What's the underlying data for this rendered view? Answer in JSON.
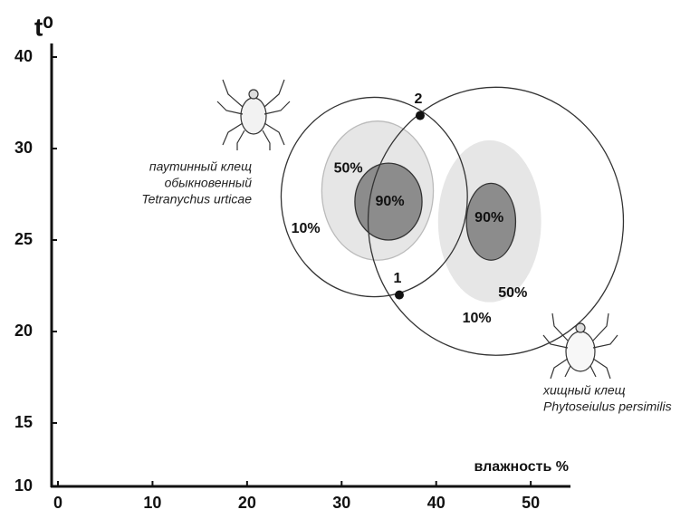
{
  "chart_data": {
    "type": "niche",
    "y_label": "t⁰",
    "x_label": "влажность %",
    "xlim": [
      0,
      54.2
    ],
    "xticks": [
      0,
      10,
      20,
      30,
      40,
      50
    ],
    "ylim": [
      10,
      40
    ],
    "yticks": [
      10,
      15,
      20,
      25,
      30,
      40
    ],
    "ellipses": [
      {
        "xmin": 27.9,
        "xmax": 39.7,
        "ymin": 23.9,
        "ymax": 33.0,
        "fill": "#e6e6e6",
        "stroke": "#bbbbbb"
      },
      {
        "xmin": 40.2,
        "xmax": 51.1,
        "ymin": 21.6,
        "ymax": 30.9,
        "fill": "#e6e6e6",
        "stroke": "none"
      },
      {
        "xmin": 31.4,
        "xmax": 38.5,
        "ymin": 25.0,
        "ymax": 29.2,
        "fill": "#8c8c8c",
        "stroke": "#333333"
      },
      {
        "xmin": 43.2,
        "xmax": 48.4,
        "ymin": 23.9,
        "ymax": 28.1,
        "fill": "#8c8c8c",
        "stroke": "#333333"
      },
      {
        "xmin": 23.6,
        "xmax": 43.3,
        "ymin": 21.9,
        "ymax": 35.6,
        "fill": "none",
        "stroke": "#333333"
      },
      {
        "xmin": 32.8,
        "xmax": 59.8,
        "ymin": 18.7,
        "ymax": 36.7,
        "fill": "none",
        "stroke": "#333333"
      }
    ],
    "annotations": [
      {
        "text": "10%",
        "x": 26.2,
        "y": 25.6
      },
      {
        "text": "10%",
        "x": 44.3,
        "y": 20.7
      },
      {
        "text": "50%",
        "x": 30.7,
        "y": 28.9
      },
      {
        "text": "50%",
        "x": 48.1,
        "y": 22.1
      },
      {
        "text": "90%",
        "x": 35.1,
        "y": 27.1
      },
      {
        "text": "90%",
        "x": 45.6,
        "y": 26.2
      }
    ],
    "points": [
      {
        "label": "1",
        "x": 36.1,
        "y": 22.0
      },
      {
        "label": "2",
        "x": 38.3,
        "y": 33.6
      }
    ],
    "species": [
      {
        "lines": [
          "паутинный клещ",
          "обыкновенный",
          "Tetranychus urticae"
        ]
      },
      {
        "lines": [
          "хищный клещ",
          "Phytoseiulus persimilis"
        ]
      }
    ]
  }
}
